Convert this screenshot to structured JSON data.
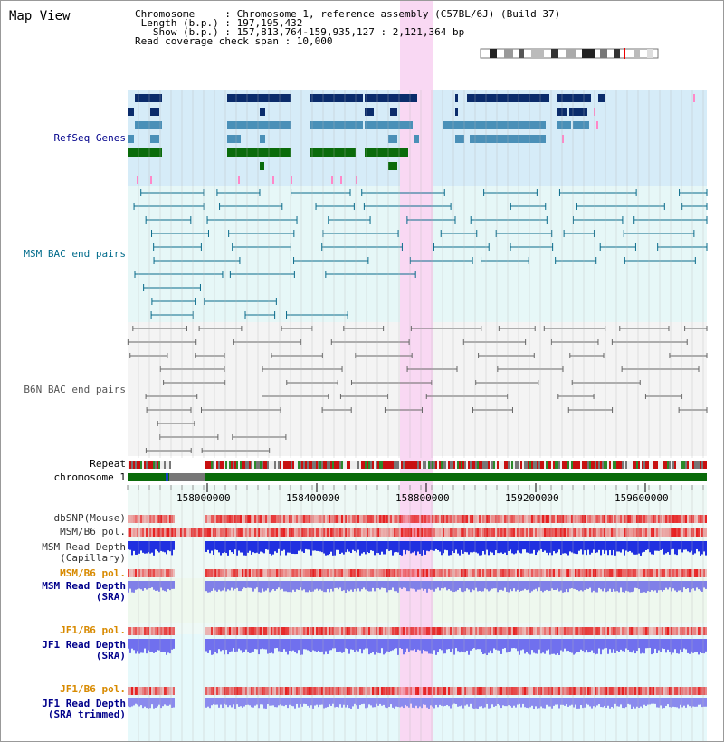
{
  "header": {
    "title": "Map View",
    "info_lines": [
      "Chromosome     : Chromosome 1, reference assembly (C57BL/6J) (Build 37)",
      " Length (b.p.) : 197,195,432",
      "   Show (b.p.) : 157,813,764-159,935,127 : 2,121,364 bp",
      "Read coverage check span : 10,000"
    ]
  },
  "tracks": {
    "refseq": {
      "label": "RefSeq Genes",
      "color": "#00008b"
    },
    "msm_bac": {
      "label": "MSM BAC end pairs",
      "color": "#006b8b"
    },
    "b6n_bac": {
      "label": "B6N BAC end pairs",
      "color": "#555555"
    },
    "repeat": {
      "label": "Repeat"
    },
    "chromosome": {
      "label": "chromosome 1"
    },
    "axis": {
      "ticks": [
        "158000000",
        "158400000",
        "158800000",
        "159200000",
        "159600000"
      ]
    },
    "dbsnp": {
      "label": "dbSNP(Mouse)"
    },
    "msm_b6_pol": {
      "label": "MSM/B6 pol."
    },
    "msm_depth_cap": {
      "line1": "MSM Read Depth",
      "line2": "(Capillary)"
    },
    "msm_b6_pol_2": {
      "label": "MSM/B6 pol.",
      "color": "#d88a00"
    },
    "msm_depth_sra": {
      "line1": "MSM Read Depth",
      "line2": "(SRA)",
      "color": "#00008b"
    },
    "jf1_b6_pol": {
      "label": "JF1/B6 pol.",
      "color": "#d88a00"
    },
    "jf1_depth_sra": {
      "line1": "JF1 Read Depth",
      "line2": "(SRA)",
      "color": "#00008b"
    },
    "jf1_b6_pol_2": {
      "label": "JF1/B6 pol.",
      "color": "#d88a00"
    },
    "jf1_depth_trim": {
      "line1": "JF1 Read Depth",
      "line2": "(SRA trimmed)",
      "color": "#00008b"
    }
  },
  "colors": {
    "highlight": "#f9d8f3",
    "gene_dark": "#0b2c6b",
    "gene_mid": "#4a90b8",
    "gene_green": "#0a6b0a",
    "gene_pink": "#ff88c8",
    "refseq_bg": "#d6ecf8",
    "msm_bg": "#e6f7f7",
    "b6n_bg": "#f4f4f4"
  }
}
